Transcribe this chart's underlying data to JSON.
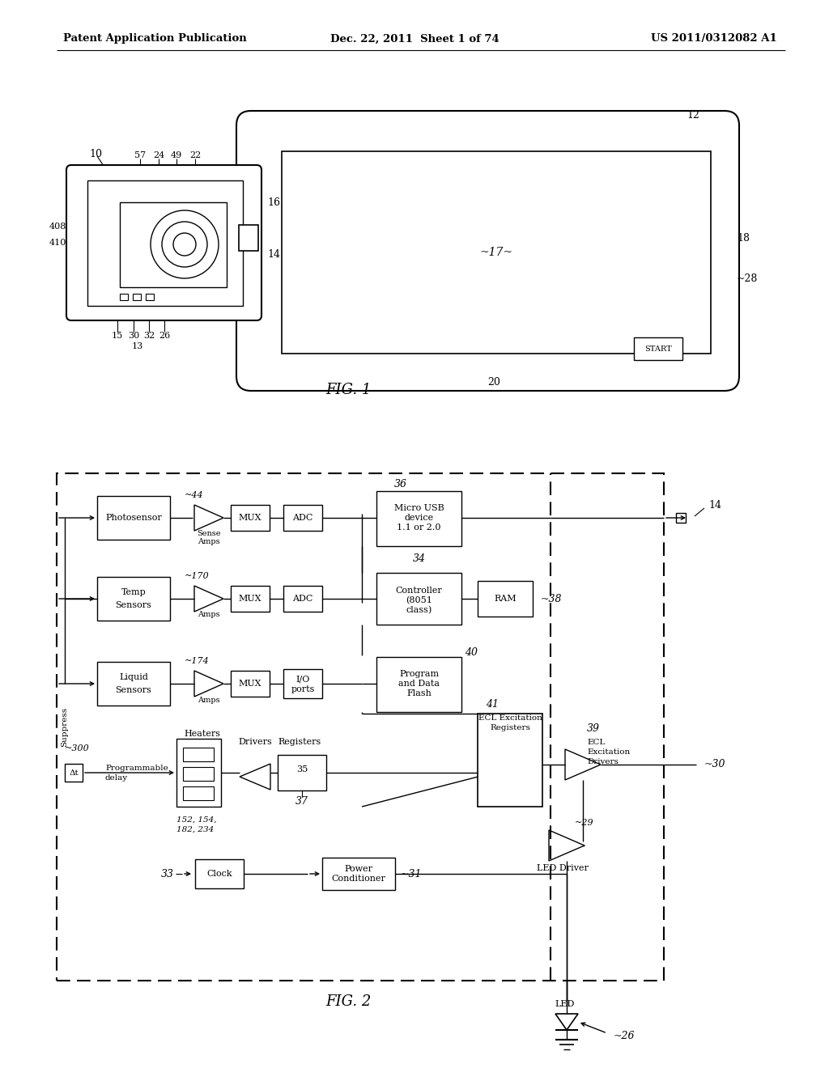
{
  "bg_color": "#ffffff",
  "header_left": "Patent Application Publication",
  "header_center": "Dec. 22, 2011  Sheet 1 of 74",
  "header_right": "US 2011/0312082 A1",
  "fig1_caption": "FIG. 1",
  "fig2_caption": "FIG. 2"
}
